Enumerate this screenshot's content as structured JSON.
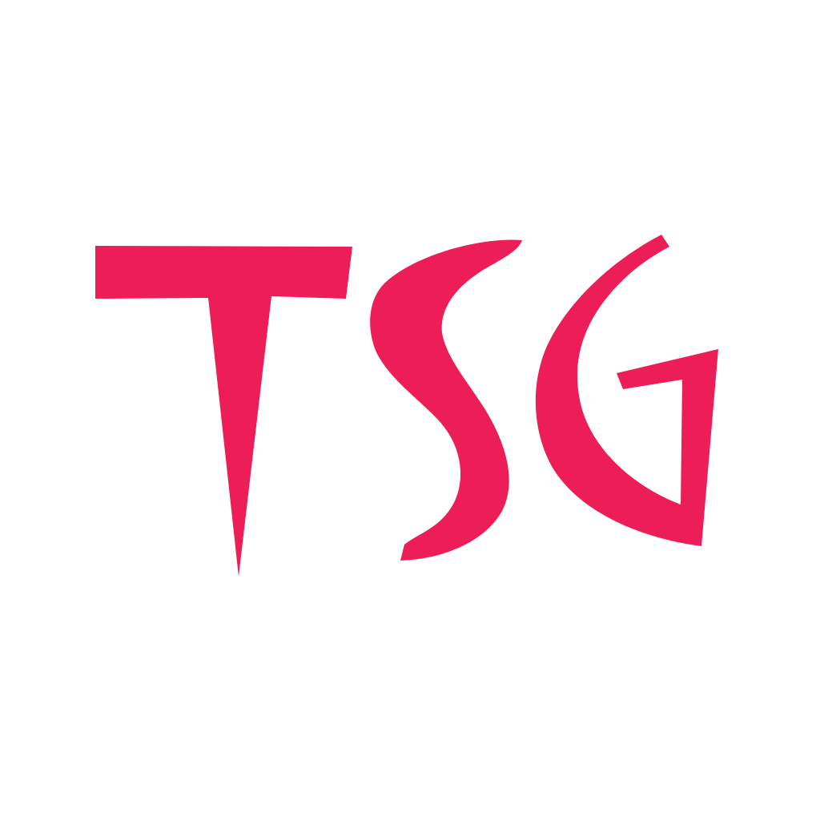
{
  "logo": {
    "text": "TSG",
    "letters": [
      "T",
      "S",
      "G"
    ],
    "color": "#ED1E57"
  },
  "background_color": "#FFFFFF"
}
